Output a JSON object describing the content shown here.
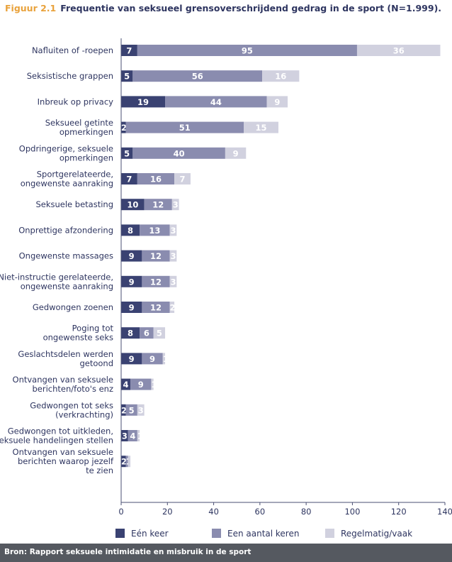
{
  "figure": {
    "label": "Figuur 2.1",
    "title": "Frequentie van seksueel grensoverschrijdend gedrag in de sport (N=1.999)."
  },
  "source": "Bron: Rapport seksuele intimidatie en misbruik in de sport",
  "colors": {
    "een_keer": "#3a4272",
    "aantal_keren": "#8a8caf",
    "regelmatig": "#d1d1df"
  },
  "chart_data": {
    "type": "bar",
    "orientation": "horizontal",
    "stacked": true,
    "title": "Frequentie van seksueel grensoverschrijdend gedrag in de sport (N=1.999).",
    "xlim": [
      0,
      140
    ],
    "xticks": [
      0,
      20,
      40,
      60,
      80,
      100,
      120,
      140
    ],
    "categories": [
      [
        "Nafluiten of -roepen"
      ],
      [
        "Seksistische grappen"
      ],
      [
        "Inbreuk op privacy"
      ],
      [
        "Seksueel getinte",
        "opmerkingen"
      ],
      [
        "Opdringerige, seksuele",
        "opmerkingen"
      ],
      [
        "Sportgerelateerde,",
        "ongewenste aanraking"
      ],
      [
        "Seksuele betasting"
      ],
      [
        "Onprettige afzondering"
      ],
      [
        "Ongewenste massages"
      ],
      [
        "Niet-instructie gerelateerde,",
        "ongewenste aanraking"
      ],
      [
        "Gedwongen zoenen"
      ],
      [
        "Poging tot",
        "ongewenste seks"
      ],
      [
        "Geslachtsdelen werden",
        "getoond"
      ],
      [
        "Ontvangen van seksuele",
        "berichten/foto's enz"
      ],
      [
        "Gedwongen tot seks",
        "(verkrachting)"
      ],
      [
        "Gedwongen tot uitkleden,",
        "seksuele handelingen stellen"
      ],
      [
        "Ontvangen van seksuele",
        "berichten waarop jezelf",
        "te zien"
      ]
    ],
    "series": [
      {
        "name": "Eén keer",
        "values": [
          7,
          5,
          19,
          2,
          5,
          7,
          10,
          8,
          9,
          9,
          9,
          8,
          9,
          4,
          2,
          3,
          2
        ]
      },
      {
        "name": "Een aantal keren",
        "values": [
          95,
          56,
          44,
          51,
          40,
          16,
          12,
          13,
          12,
          12,
          12,
          6,
          9,
          9,
          5,
          4,
          1
        ]
      },
      {
        "name": "Regelmatig/vaak",
        "values": [
          36,
          16,
          9,
          15,
          9,
          7,
          3,
          3,
          3,
          3,
          2,
          5,
          1,
          1,
          3,
          1,
          1
        ]
      }
    ],
    "data_labels": [
      [
        "7",
        "95",
        "36"
      ],
      [
        "5",
        "56",
        "16"
      ],
      [
        "19",
        "44",
        "9"
      ],
      [
        "2",
        "51",
        "15"
      ],
      [
        "5",
        "40",
        "9"
      ],
      [
        "7",
        "16",
        "7"
      ],
      [
        "10",
        "12",
        "3"
      ],
      [
        "8",
        "13",
        "3"
      ],
      [
        "9",
        "12",
        "3"
      ],
      [
        "9",
        "12",
        "3"
      ],
      [
        "9",
        "12",
        "2"
      ],
      [
        "8",
        "6",
        "5"
      ],
      [
        "9",
        "9",
        "1"
      ],
      [
        "4",
        "9",
        "1"
      ],
      [
        "2",
        "5",
        "3"
      ],
      [
        "3",
        "4",
        "1"
      ],
      [
        "2",
        "1",
        ""
      ]
    ],
    "legend": [
      "Eén keer",
      "Een aantal keren",
      "Regelmatig/vaak"
    ]
  }
}
